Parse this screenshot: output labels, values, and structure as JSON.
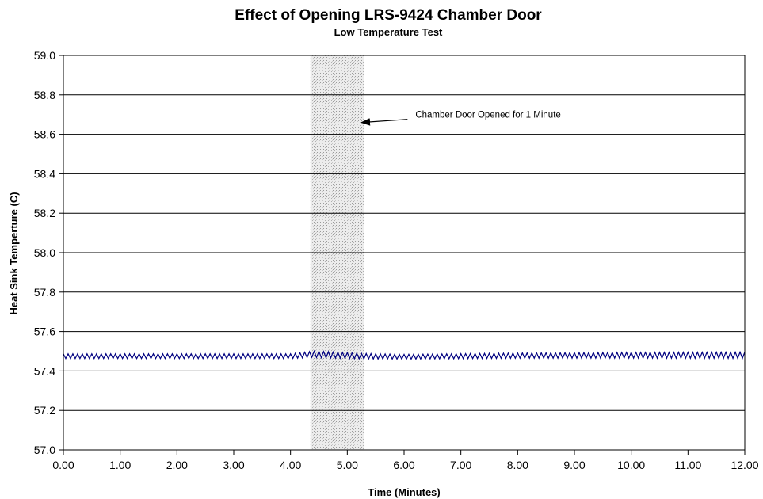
{
  "chart_data": {
    "type": "line",
    "title": "Effect of Opening LRS-9424 Chamber Door",
    "subtitle": "Low Temperature Test",
    "xlabel": "Time (Minutes)",
    "ylabel": "Heat Sink Temperture (C)",
    "xlim": [
      0,
      12
    ],
    "ylim": [
      57.0,
      59.0
    ],
    "x_ticks": [
      "0.00",
      "1.00",
      "2.00",
      "3.00",
      "4.00",
      "5.00",
      "6.00",
      "7.00",
      "8.00",
      "9.00",
      "10.00",
      "11.00",
      "12.00"
    ],
    "y_ticks": [
      "57.0",
      "57.2",
      "57.4",
      "57.6",
      "57.8",
      "58.0",
      "58.2",
      "58.4",
      "58.6",
      "58.8",
      "59.0"
    ],
    "grid": "horizontal",
    "series_color": "#000080",
    "series": [
      {
        "oscillation": "sawtooth, ~12 cycles per minute",
        "points": [
          {
            "x": 0.0,
            "y": 57.475
          },
          {
            "x": 2.0,
            "y": 57.475
          },
          {
            "x": 4.0,
            "y": 57.475
          },
          {
            "x": 4.4,
            "y": 57.485
          },
          {
            "x": 5.3,
            "y": 57.475
          },
          {
            "x": 6.0,
            "y": 57.472
          },
          {
            "x": 8.0,
            "y": 57.478
          },
          {
            "x": 10.0,
            "y": 57.48
          },
          {
            "x": 12.0,
            "y": 57.48
          }
        ],
        "amplitude": [
          {
            "x": 0.0,
            "a": 0.012
          },
          {
            "x": 4.0,
            "a": 0.012
          },
          {
            "x": 4.5,
            "a": 0.016
          },
          {
            "x": 6.0,
            "a": 0.012
          },
          {
            "x": 9.0,
            "a": 0.014
          },
          {
            "x": 12.0,
            "a": 0.016
          }
        ]
      }
    ],
    "shaded_region": {
      "x_start": 4.35,
      "x_end": 5.3
    },
    "annotation": {
      "text": "Chamber Door Opened for 1 Minute",
      "arrow_to": {
        "x": 5.25,
        "y": 58.66
      },
      "text_anchor": {
        "x": 6.2,
        "y": 58.7
      }
    }
  }
}
